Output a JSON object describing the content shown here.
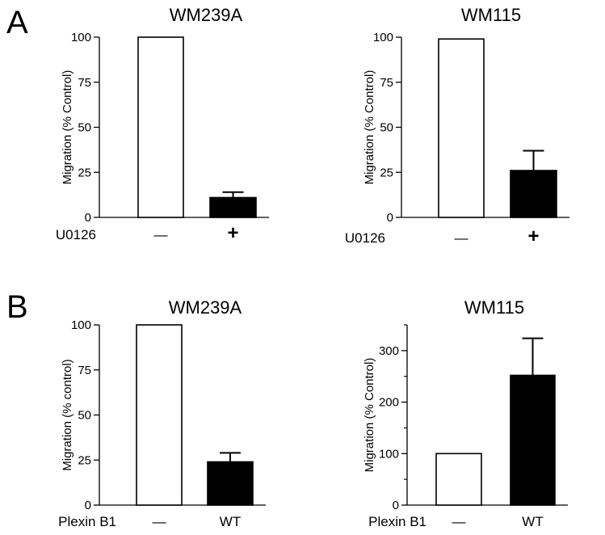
{
  "panels": [
    {
      "letter": "A"
    },
    {
      "letter": "B"
    }
  ],
  "chart_data": [
    {
      "type": "bar",
      "panel": "A",
      "title": "WM239A",
      "ylabel": "Migration (% Control)",
      "xlabel": "U0126",
      "categories": [
        "—",
        "+"
      ],
      "values": [
        100,
        11
      ],
      "errors": [
        null,
        3
      ],
      "fills": [
        "#ffffff",
        "#000000"
      ],
      "ylim": [
        0,
        100
      ],
      "yticks": [
        0,
        25,
        50,
        75,
        100
      ]
    },
    {
      "type": "bar",
      "panel": "A",
      "title": "WM115",
      "ylabel": "Migration (% Control)",
      "xlabel": "U0126",
      "categories": [
        "—",
        "+"
      ],
      "values": [
        99,
        26
      ],
      "errors": [
        null,
        11
      ],
      "fills": [
        "#ffffff",
        "#000000"
      ],
      "ylim": [
        0,
        100
      ],
      "yticks": [
        0,
        25,
        50,
        75,
        100
      ]
    },
    {
      "type": "bar",
      "panel": "B",
      "title": "WM239A",
      "ylabel": "Migration (% control)",
      "xlabel": "Plexin B1",
      "categories": [
        "—",
        "WT"
      ],
      "values": [
        100,
        24
      ],
      "errors": [
        null,
        5
      ],
      "fills": [
        "#ffffff",
        "#000000"
      ],
      "ylim": [
        0,
        100
      ],
      "yticks": [
        0,
        25,
        50,
        75,
        100
      ]
    },
    {
      "type": "bar",
      "panel": "B",
      "title": "WM115",
      "ylabel": "Migration (% Control)",
      "xlabel": "Plexin B1",
      "categories": [
        "—",
        "WT"
      ],
      "values": [
        100,
        252
      ],
      "errors": [
        null,
        72
      ],
      "fills": [
        "#ffffff",
        "#000000"
      ],
      "ylim": [
        0,
        350
      ],
      "yticks": [
        0,
        100,
        200,
        300
      ],
      "minor_ticks": [
        50,
        150,
        250,
        350
      ]
    }
  ]
}
